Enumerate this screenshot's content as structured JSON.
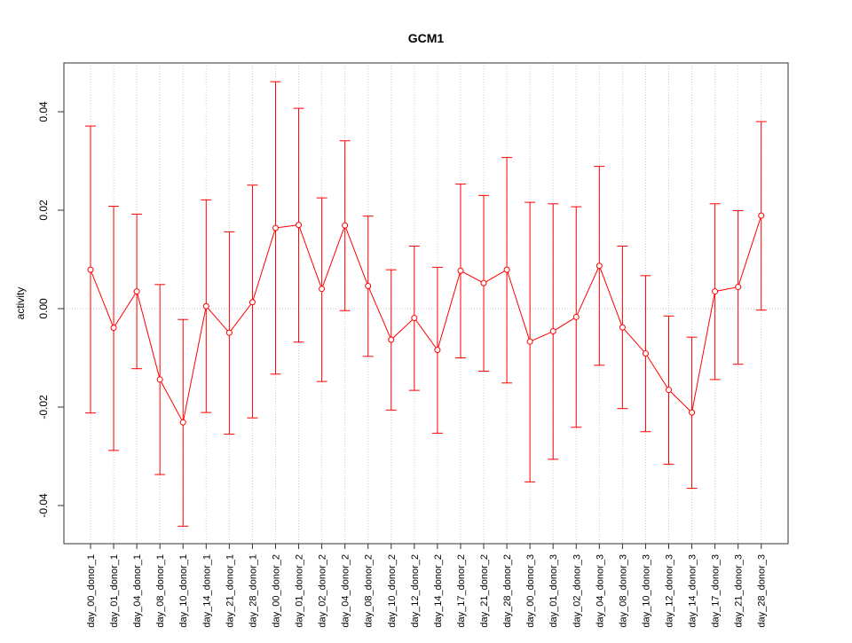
{
  "chart_data": {
    "type": "line",
    "title": "GCM1",
    "xlabel": "",
    "ylabel": "activity",
    "ylim": [
      -0.048,
      0.05
    ],
    "yticks": [
      -0.04,
      -0.02,
      0.0,
      0.02,
      0.04
    ],
    "ytick_labels": [
      "-0.04",
      "-0.02",
      "0.00",
      "0.02",
      "0.04"
    ],
    "grid": true,
    "categories": [
      "day_00_donor_1",
      "day_01_donor_1",
      "day_04_donor_1",
      "day_08_donor_1",
      "day_10_donor_1",
      "day_14_donor_1",
      "day_21_donor_1",
      "day_28_donor_1",
      "day_00_donor_2",
      "day_01_donor_2",
      "day_02_donor_2",
      "day_04_donor_2",
      "day_08_donor_2",
      "day_10_donor_2",
      "day_12_donor_2",
      "day_14_donor_2",
      "day_17_donor_2",
      "day_21_donor_2",
      "day_28_donor_2",
      "day_00_donor_3",
      "day_01_donor_3",
      "day_02_donor_3",
      "day_04_donor_3",
      "day_08_donor_3",
      "day_10_donor_3",
      "day_12_donor_3",
      "day_14_donor_3",
      "day_17_donor_3",
      "day_21_donor_3",
      "day_28_donor_3"
    ],
    "series": [
      {
        "color": "#ff0000",
        "values": [
          0.0079,
          -0.0039,
          0.0035,
          -0.0144,
          -0.0231,
          0.0005,
          -0.0049,
          0.0013,
          0.0164,
          0.017,
          0.004,
          0.0169,
          0.0046,
          -0.0063,
          -0.0019,
          -0.0084,
          0.0077,
          0.0052,
          0.0079,
          -0.0067,
          -0.0046,
          -0.0017,
          0.0087,
          -0.0038,
          -0.0091,
          -0.0165,
          -0.0211,
          0.0035,
          0.0044,
          0.0189
        ],
        "upper": [
          0.0371,
          0.0208,
          0.0192,
          0.0049,
          -0.0022,
          0.0221,
          0.0156,
          0.0251,
          0.0461,
          0.0407,
          0.0225,
          0.0341,
          0.0188,
          0.0079,
          0.0127,
          0.0084,
          0.0253,
          0.023,
          0.0307,
          0.0216,
          0.0213,
          0.0207,
          0.0289,
          0.0127,
          0.0067,
          -0.0015,
          -0.0058,
          0.0213,
          0.0199,
          0.038
        ],
        "lower": [
          -0.0212,
          -0.0288,
          -0.0122,
          -0.0337,
          -0.0442,
          -0.0211,
          -0.0255,
          -0.0222,
          -0.0133,
          -0.0068,
          -0.0148,
          -0.0004,
          -0.0097,
          -0.0206,
          -0.0166,
          -0.0253,
          -0.01,
          -0.0127,
          -0.0151,
          -0.0352,
          -0.0306,
          -0.0241,
          -0.0115,
          -0.0203,
          -0.025,
          -0.0316,
          -0.0365,
          -0.0144,
          -0.0113,
          -0.0003
        ]
      }
    ]
  }
}
